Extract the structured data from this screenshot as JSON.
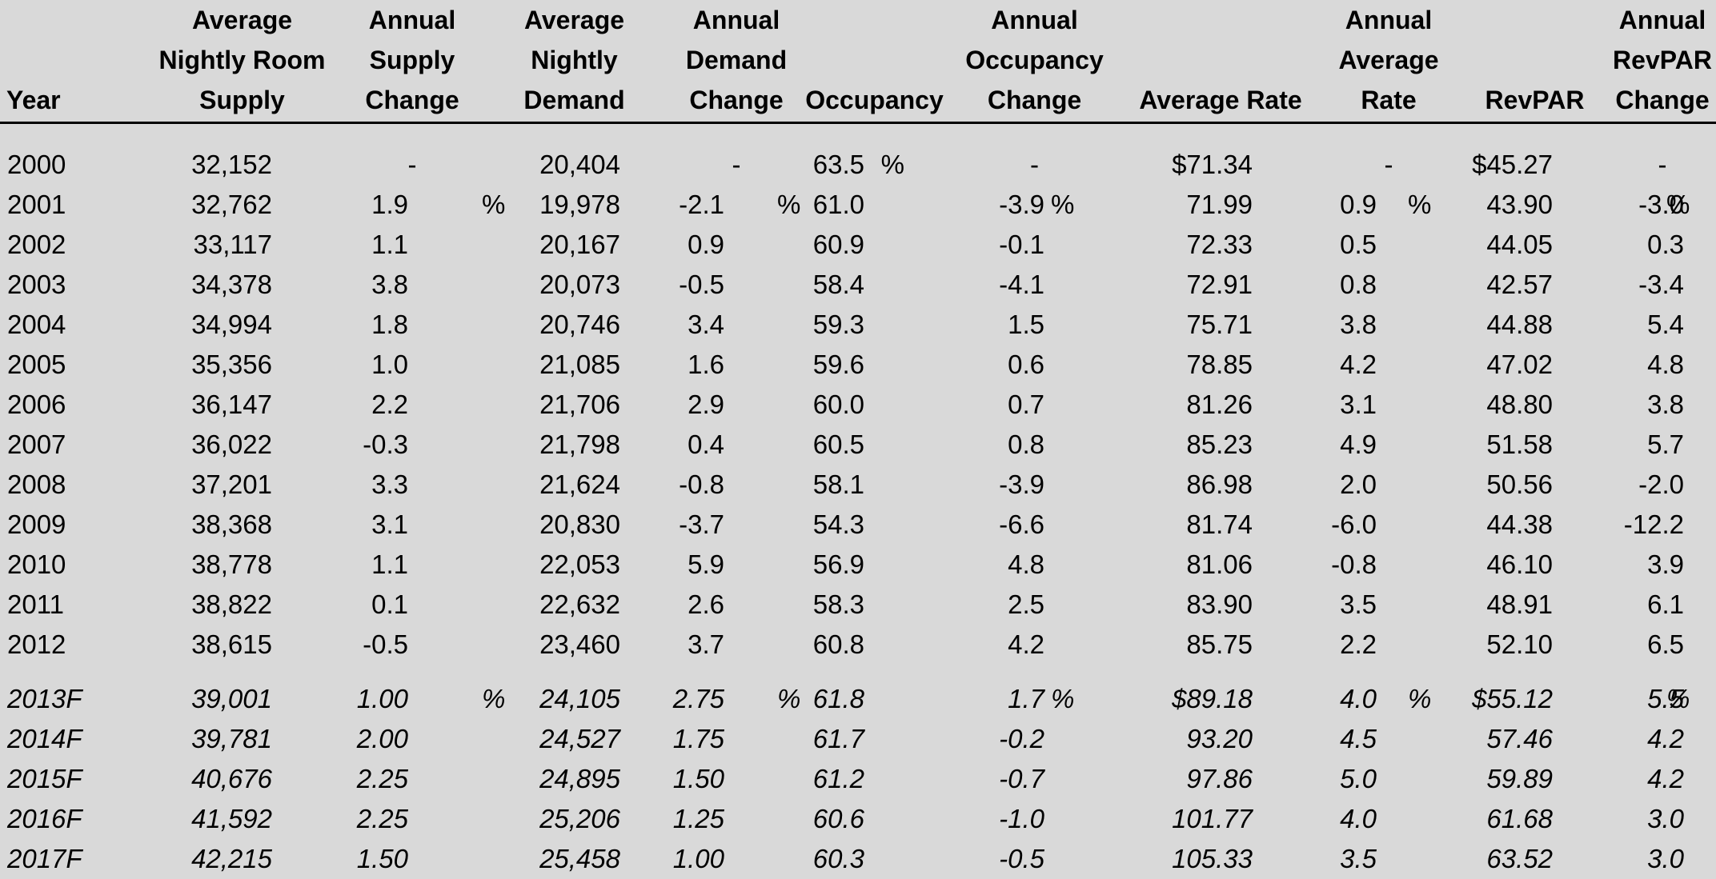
{
  "headers": {
    "year": [
      "Year"
    ],
    "supply": [
      "Average",
      "Nightly Room",
      "Supply"
    ],
    "supply_change": [
      "Annual",
      "Supply",
      "Change"
    ],
    "demand": [
      "Average",
      "Nightly",
      "Demand"
    ],
    "demand_change": [
      "Annual",
      "Demand",
      "Change"
    ],
    "occupancy": [
      "Occupancy"
    ],
    "occupancy_change": [
      "Annual",
      "Occupancy",
      "Change"
    ],
    "avg_rate": [
      "Average Rate"
    ],
    "avg_rate_change": [
      "Annual",
      "Average",
      "Rate"
    ],
    "revpar": [
      "RevPAR"
    ],
    "revpar_change": [
      "Annual",
      "RevPAR",
      "Change"
    ]
  },
  "percent_sign": "%",
  "historical": [
    [
      "2000",
      "32,152",
      "-",
      "20,404",
      "-",
      "63.5",
      "-",
      "$71.34",
      "-",
      "$45.27",
      "-"
    ],
    [
      "2001",
      "32,762",
      "1.9",
      "19,978",
      "-2.1",
      "61.0",
      "-3.9",
      "71.99",
      "0.9",
      "43.90",
      "-3.0"
    ],
    [
      "2002",
      "33,117",
      "1.1",
      "20,167",
      "0.9",
      "60.9",
      "-0.1",
      "72.33",
      "0.5",
      "44.05",
      "0.3"
    ],
    [
      "2003",
      "34,378",
      "3.8",
      "20,073",
      "-0.5",
      "58.4",
      "-4.1",
      "72.91",
      "0.8",
      "42.57",
      "-3.4"
    ],
    [
      "2004",
      "34,994",
      "1.8",
      "20,746",
      "3.4",
      "59.3",
      "1.5",
      "75.71",
      "3.8",
      "44.88",
      "5.4"
    ],
    [
      "2005",
      "35,356",
      "1.0",
      "21,085",
      "1.6",
      "59.6",
      "0.6",
      "78.85",
      "4.2",
      "47.02",
      "4.8"
    ],
    [
      "2006",
      "36,147",
      "2.2",
      "21,706",
      "2.9",
      "60.0",
      "0.7",
      "81.26",
      "3.1",
      "48.80",
      "3.8"
    ],
    [
      "2007",
      "36,022",
      "-0.3",
      "21,798",
      "0.4",
      "60.5",
      "0.8",
      "85.23",
      "4.9",
      "51.58",
      "5.7"
    ],
    [
      "2008",
      "37,201",
      "3.3",
      "21,624",
      "-0.8",
      "58.1",
      "-3.9",
      "86.98",
      "2.0",
      "50.56",
      "-2.0"
    ],
    [
      "2009",
      "38,368",
      "3.1",
      "20,830",
      "-3.7",
      "54.3",
      "-6.6",
      "81.74",
      "-6.0",
      "44.38",
      "-12.2"
    ],
    [
      "2010",
      "38,778",
      "1.1",
      "22,053",
      "5.9",
      "56.9",
      "4.8",
      "81.06",
      "-0.8",
      "46.10",
      "3.9"
    ],
    [
      "2011",
      "38,822",
      "0.1",
      "22,632",
      "2.6",
      "58.3",
      "2.5",
      "83.90",
      "3.5",
      "48.91",
      "6.1"
    ],
    [
      "2012",
      "38,615",
      "-0.5",
      "23,460",
      "3.7",
      "60.8",
      "4.2",
      "85.75",
      "2.2",
      "52.10",
      "6.5"
    ]
  ],
  "forecast": [
    [
      "2013F",
      "39,001",
      "1.00",
      "24,105",
      "2.75",
      "61.8",
      "1.7",
      "$89.18",
      "4.0",
      "$55.12",
      "5.5"
    ],
    [
      "2014F",
      "39,781",
      "2.00",
      "24,527",
      "1.75",
      "61.7",
      "-0.2",
      "93.20",
      "4.5",
      "57.46",
      "4.2"
    ],
    [
      "2015F",
      "40,676",
      "2.25",
      "24,895",
      "1.50",
      "61.2",
      "-0.7",
      "97.86",
      "5.0",
      "59.89",
      "4.2"
    ],
    [
      "2016F",
      "41,592",
      "2.25",
      "25,206",
      "1.25",
      "60.6",
      "-1.0",
      "101.77",
      "4.0",
      "61.68",
      "3.0"
    ],
    [
      "2017F",
      "42,215",
      "1.50",
      "25,458",
      "1.00",
      "60.3",
      "-0.5",
      "105.33",
      "3.5",
      "63.52",
      "3.0"
    ]
  ],
  "percent_rows": {
    "2000": [
      5
    ],
    "2001": [
      2,
      4,
      6,
      8,
      10
    ],
    "2013F": [
      2,
      4,
      6,
      8,
      10
    ]
  }
}
